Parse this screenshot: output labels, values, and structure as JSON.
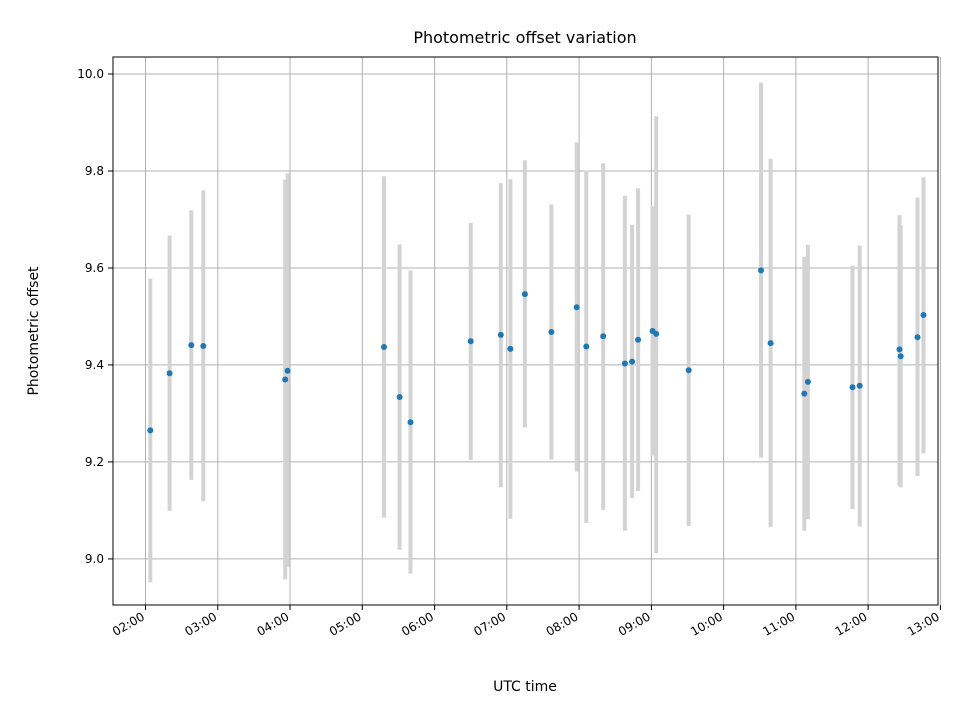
{
  "chart_data": {
    "type": "scatter",
    "title": "Photometric offset variation",
    "xlabel": "UTC time",
    "ylabel": "Photometric offset",
    "x_tick_labels": [
      "02:00",
      "03:00",
      "04:00",
      "05:00",
      "06:00",
      "07:00",
      "08:00",
      "09:00",
      "10:00",
      "11:00",
      "12:00",
      "13:00"
    ],
    "y_tick_labels": [
      "9.0",
      "9.2",
      "9.4",
      "9.6",
      "9.8",
      "10.0"
    ],
    "y_ticks": [
      9.0,
      9.2,
      9.4,
      9.6,
      9.8,
      10.0
    ],
    "xlim": [
      "01:33",
      "12:58"
    ],
    "ylim": [
      8.905,
      10.035
    ],
    "grid": true,
    "point_color": "#1f77b4",
    "errorbar_color": "#d3d3d3",
    "points": [
      {
        "x": "02:04",
        "y": 9.265,
        "ylow": 8.952,
        "yhigh": 9.578
      },
      {
        "x": "02:20",
        "y": 9.383,
        "ylow": 9.099,
        "yhigh": 9.667
      },
      {
        "x": "02:38",
        "y": 9.441,
        "ylow": 9.163,
        "yhigh": 9.719
      },
      {
        "x": "02:48",
        "y": 9.439,
        "ylow": 9.119,
        "yhigh": 9.76
      },
      {
        "x": "03:56",
        "y": 9.37,
        "ylow": 8.958,
        "yhigh": 9.782
      },
      {
        "x": "03:58",
        "y": 9.388,
        "ylow": 8.984,
        "yhigh": 9.795
      },
      {
        "x": "05:18",
        "y": 9.437,
        "ylow": 9.085,
        "yhigh": 9.789
      },
      {
        "x": "05:31",
        "y": 9.334,
        "ylow": 9.019,
        "yhigh": 9.649
      },
      {
        "x": "05:40",
        "y": 9.282,
        "ylow": 8.97,
        "yhigh": 9.595
      },
      {
        "x": "06:30",
        "y": 9.449,
        "ylow": 9.204,
        "yhigh": 9.693
      },
      {
        "x": "06:55",
        "y": 9.462,
        "ylow": 9.148,
        "yhigh": 9.775
      },
      {
        "x": "07:03",
        "y": 9.433,
        "ylow": 9.083,
        "yhigh": 9.783
      },
      {
        "x": "07:15",
        "y": 9.546,
        "ylow": 9.271,
        "yhigh": 9.822
      },
      {
        "x": "07:37",
        "y": 9.468,
        "ylow": 9.205,
        "yhigh": 9.731
      },
      {
        "x": "07:58",
        "y": 9.519,
        "ylow": 9.18,
        "yhigh": 9.859
      },
      {
        "x": "08:06",
        "y": 9.438,
        "ylow": 9.074,
        "yhigh": 9.801
      },
      {
        "x": "08:20",
        "y": 9.459,
        "ylow": 9.101,
        "yhigh": 9.816
      },
      {
        "x": "08:38",
        "y": 9.403,
        "ylow": 9.058,
        "yhigh": 9.749
      },
      {
        "x": "08:44",
        "y": 9.407,
        "ylow": 9.125,
        "yhigh": 9.689
      },
      {
        "x": "08:49",
        "y": 9.452,
        "ylow": 9.14,
        "yhigh": 9.764
      },
      {
        "x": "09:01",
        "y": 9.47,
        "ylow": 9.213,
        "yhigh": 9.727
      },
      {
        "x": "09:04",
        "y": 9.464,
        "ylow": 9.012,
        "yhigh": 9.913
      },
      {
        "x": "09:31",
        "y": 9.389,
        "ylow": 9.068,
        "yhigh": 9.71
      },
      {
        "x": "10:31",
        "y": 9.595,
        "ylow": 9.209,
        "yhigh": 9.982
      },
      {
        "x": "10:39",
        "y": 9.445,
        "ylow": 9.066,
        "yhigh": 9.825
      },
      {
        "x": "11:07",
        "y": 9.341,
        "ylow": 9.058,
        "yhigh": 9.623
      },
      {
        "x": "11:10",
        "y": 9.365,
        "ylow": 9.082,
        "yhigh": 9.648
      },
      {
        "x": "11:47",
        "y": 9.354,
        "ylow": 9.103,
        "yhigh": 9.605
      },
      {
        "x": "11:53",
        "y": 9.357,
        "ylow": 9.067,
        "yhigh": 9.646
      },
      {
        "x": "12:26",
        "y": 9.432,
        "ylow": 9.151,
        "yhigh": 9.709
      },
      {
        "x": "12:27",
        "y": 9.418,
        "ylow": 9.148,
        "yhigh": 9.688
      },
      {
        "x": "12:41",
        "y": 9.457,
        "ylow": 9.171,
        "yhigh": 9.745
      },
      {
        "x": "12:46",
        "y": 9.503,
        "ylow": 9.218,
        "yhigh": 9.787
      }
    ]
  }
}
